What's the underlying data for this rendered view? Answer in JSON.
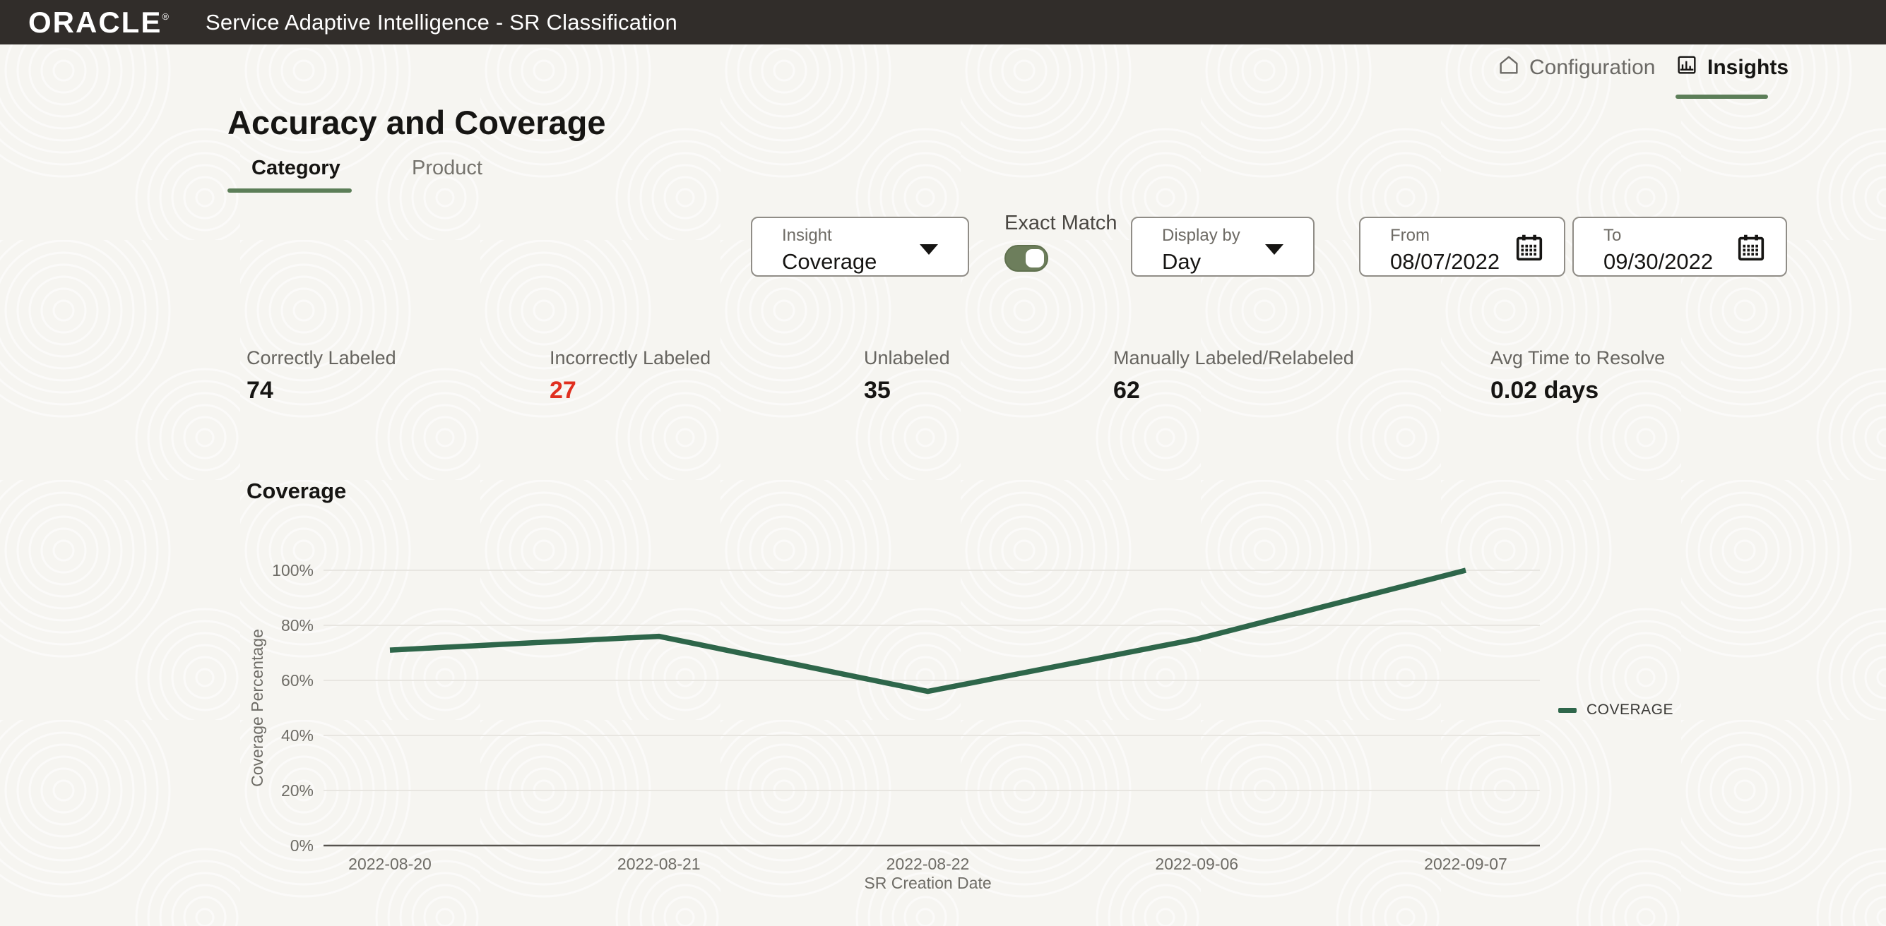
{
  "header": {
    "brand": "ORACLE",
    "registered": "®",
    "title": "Service Adaptive Intelligence - SR Classification"
  },
  "nav": {
    "configuration": "Configuration",
    "insights": "Insights"
  },
  "page": {
    "title": "Accuracy and Coverage"
  },
  "tabs": [
    {
      "label": "Category",
      "active": true
    },
    {
      "label": "Product",
      "active": false
    }
  ],
  "controls": {
    "insight": {
      "label": "Insight",
      "value": "Coverage"
    },
    "exact_match": {
      "label": "Exact Match",
      "on": true
    },
    "display_by": {
      "label": "Display by",
      "value": "Day"
    },
    "from": {
      "label": "From",
      "value": "08/07/2022"
    },
    "to": {
      "label": "To",
      "value": "09/30/2022"
    }
  },
  "stats": [
    {
      "label": "Correctly Labeled",
      "value": "74",
      "color": "#161513"
    },
    {
      "label": "Incorrectly Labeled",
      "value": "27",
      "color": "#e02f1f"
    },
    {
      "label": "Unlabeled",
      "value": "35",
      "color": "#161513"
    },
    {
      "label": "Manually Labeled/Relabeled",
      "value": "62",
      "color": "#161513"
    },
    {
      "label": "Avg Time to Resolve",
      "value": "0.02 days",
      "color": "#161513"
    }
  ],
  "chart_data": {
    "type": "line",
    "title": "Coverage",
    "x": [
      "2022-08-20",
      "2022-08-21",
      "2022-08-22",
      "2022-09-06",
      "2022-09-07"
    ],
    "series": [
      {
        "name": "COVERAGE",
        "values": [
          71,
          76,
          56,
          75,
          100
        ]
      }
    ],
    "xlabel": "SR Creation Date",
    "ylabel": "Coverage Percentage",
    "ylim": [
      0,
      100
    ],
    "yticks": [
      "0%",
      "20%",
      "40%",
      "60%",
      "80%",
      "100%"
    ],
    "grid": true,
    "legend_position": "right",
    "line_color": "#2e664a"
  },
  "colors": {
    "header_bg": "#312d2a",
    "accent_green": "#5c7e58",
    "toggle_green": "#6d7e5c",
    "line_green": "#2e664a",
    "negative_red": "#e02f1f",
    "page_bg": "#f6f5f1"
  }
}
